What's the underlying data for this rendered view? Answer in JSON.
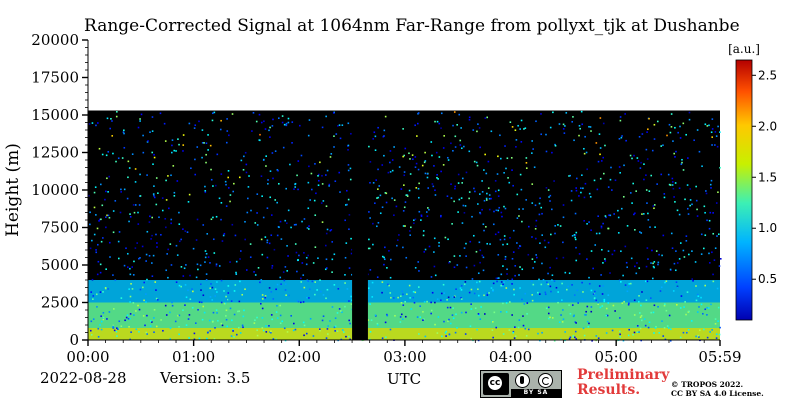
{
  "chart_data": {
    "type": "heatmap",
    "title": "Range-Corrected Signal at 1064nm Far-Range from pollyxt_tjk at Dushanbe",
    "ylabel": "Height (m)",
    "xlabel": "UTC",
    "x_ticks": [
      "00:00",
      "01:00",
      "02:00",
      "03:00",
      "04:00",
      "05:00",
      "05:59"
    ],
    "y_ticks": [
      "0",
      "2500",
      "5000",
      "7500",
      "10000",
      "12500",
      "15000",
      "17500",
      "20000"
    ],
    "xlim_hours": [
      0,
      5.983
    ],
    "ylim": [
      0,
      20000
    ],
    "data_top_height": 15300,
    "no_data_gap_hours": [
      2.5,
      2.65
    ],
    "layers": [
      {
        "name": "aerosol_layer_top",
        "height_from": 2500,
        "height_to": 4000,
        "level": 0.9
      },
      {
        "name": "aerosol_layer_mid",
        "height_from": 800,
        "height_to": 2500,
        "level": 1.3
      },
      {
        "name": "near_surface",
        "height_from": 0,
        "height_to": 800,
        "level": 1.6
      }
    ],
    "colorbar": {
      "label": "[a.u.]",
      "min": 0.1,
      "max": 2.65,
      "ticks": [
        "0.5",
        "1.0",
        "1.5",
        "2.0",
        "2.5"
      ],
      "colormap": "jet"
    }
  },
  "footer": {
    "date": "2022-08-28",
    "version": "Version: 3.5",
    "preliminary_line1": "Preliminary",
    "preliminary_line2": "Results.",
    "copyright_line1": "© TROPOS 2022.",
    "copyright_line2": "CC BY SA 4.0 License.",
    "license_badge": "BY SA"
  },
  "colors": {
    "preliminary": "#e23a3a",
    "background": "#000000",
    "license_badge": "#aab2ab"
  }
}
